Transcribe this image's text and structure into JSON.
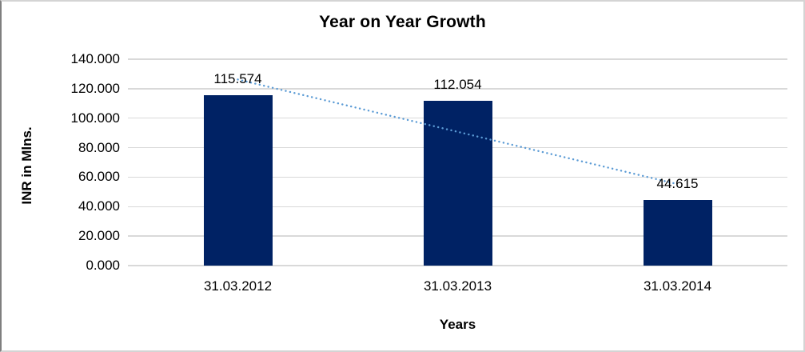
{
  "chart_data": {
    "type": "bar",
    "title": "Year on Year Growth",
    "categories": [
      "31.03.2012",
      "31.03.2013",
      "31.03.2014"
    ],
    "values": [
      115.574,
      112.054,
      44.615
    ],
    "data_labels": [
      "115.574",
      "112.054",
      "44.615"
    ],
    "xlabel": "Years",
    "ylabel": "INR in Mlns.",
    "ylim": [
      0,
      140
    ],
    "ytick_interval": 20,
    "ytick_labels": [
      "140.000",
      "120.000",
      "100.000",
      "80.000",
      "60.000",
      "40.000",
      "20.000",
      "0.000"
    ],
    "grid": "horizontal",
    "legend_position": "none",
    "trendline": {
      "type": "linear",
      "style": "dotted",
      "series": "values"
    },
    "colors": {
      "bar": "#002264",
      "trendline": "#5B9BD5",
      "gridline": "#D9D9D9",
      "text": "#000000",
      "border": "#D4D4D4",
      "border_left": "#7F7F7F"
    }
  }
}
